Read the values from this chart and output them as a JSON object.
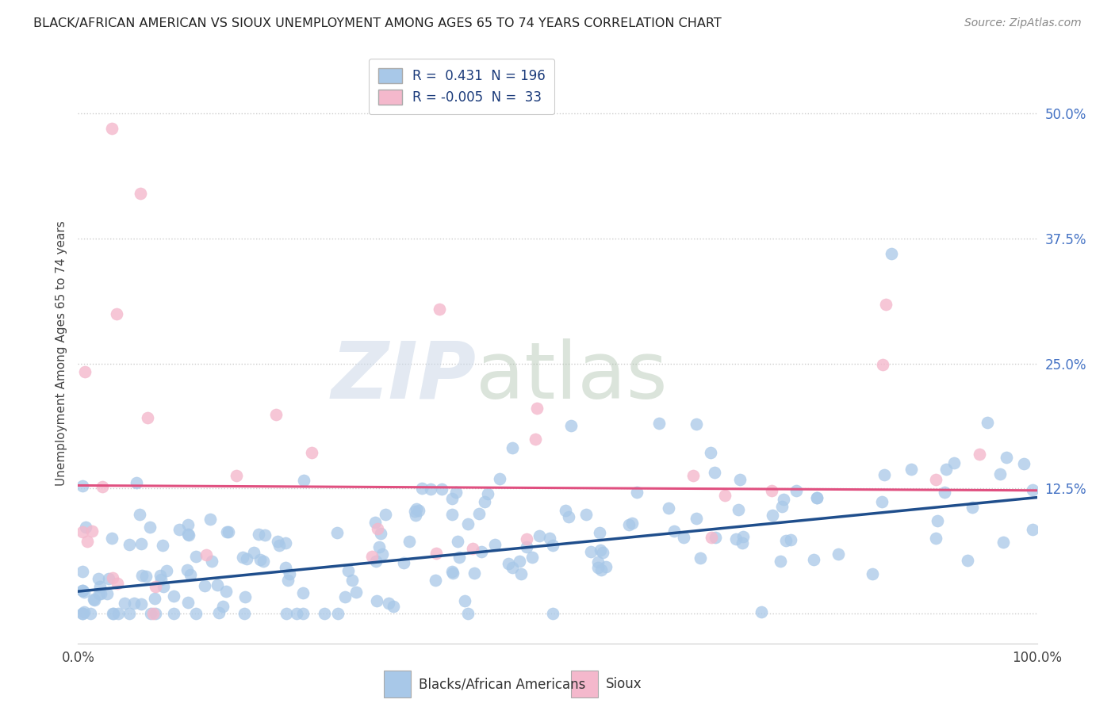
{
  "title": "BLACK/AFRICAN AMERICAN VS SIOUX UNEMPLOYMENT AMONG AGES 65 TO 74 YEARS CORRELATION CHART",
  "source": "Source: ZipAtlas.com",
  "ylabel": "Unemployment Among Ages 65 to 74 years",
  "xlim": [
    0.0,
    1.0
  ],
  "ylim": [
    -0.03,
    0.55
  ],
  "x_ticks": [
    0.0,
    0.2,
    0.4,
    0.6,
    0.8,
    1.0
  ],
  "x_tick_labels": [
    "0.0%",
    "",
    "",
    "",
    "",
    "100.0%"
  ],
  "y_ticks": [
    0.0,
    0.125,
    0.25,
    0.375,
    0.5
  ],
  "y_tick_labels": [
    "",
    "12.5%",
    "25.0%",
    "37.5%",
    "50.0%"
  ],
  "blue_color": "#a8c8e8",
  "pink_color": "#f4b8cc",
  "blue_line_color": "#1f4e8c",
  "pink_line_color": "#e05080",
  "legend_R_blue": " 0.431",
  "legend_N_blue": "196",
  "legend_R_pink": "-0.005",
  "legend_N_pink": " 33",
  "blue_line_x0": 0.0,
  "blue_line_x1": 1.0,
  "blue_line_y0": 0.022,
  "blue_line_y1": 0.116,
  "pink_line_x0": 0.0,
  "pink_line_x1": 1.0,
  "pink_line_y0": 0.128,
  "pink_line_y1": 0.123,
  "seed": 42
}
